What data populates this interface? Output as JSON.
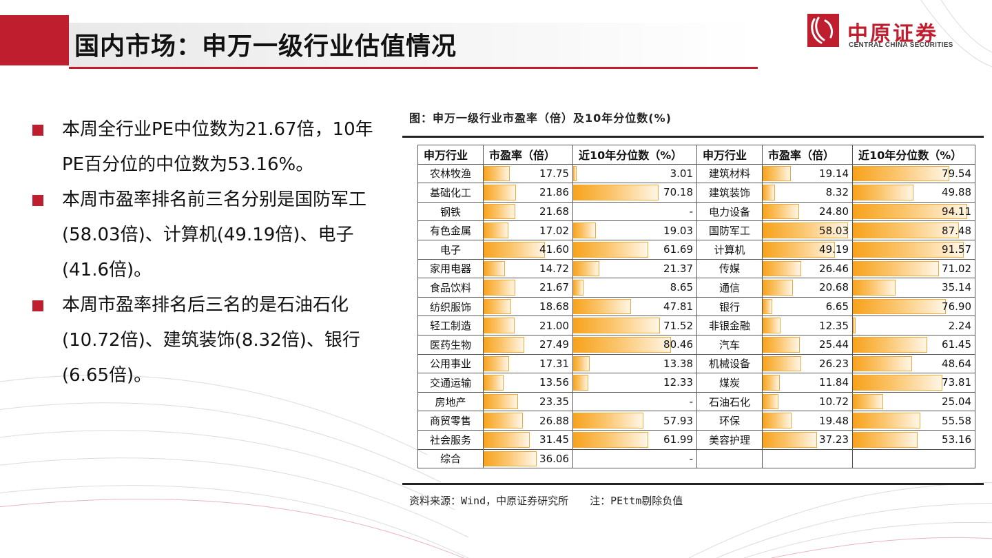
{
  "title": "国内市场：申万一级行业估值情况",
  "logo": {
    "cn": "中原证券",
    "en": "CENTRAL CHINA SECURITIES"
  },
  "bullets": [
    "本周全行业PE中位数为21.67倍，10年PE百分位的中位数为53.16%。",
    "本周市盈率排名前三名分别是国防军工(58.03倍)、计算机(49.19倍)、电子(41.6倍)。",
    "本周市盈率排名后三名的是石油石化(10.72倍)、建筑装饰(8.32倍)、银行(6.65倍)。"
  ],
  "figure_caption": "图：申万一级行业市盈率（倍）及10年分位数(%)",
  "source_note": "资料来源：Wind，中原证券研究所",
  "footnote": "注：PEttm剔除负值",
  "table": {
    "headers": [
      "申万行业",
      "市盈率（倍）",
      "近10年分位数（%）",
      "申万行业",
      "市盈率（倍）",
      "近10年分位数（%）"
    ],
    "left": [
      {
        "industry": "农林牧渔",
        "pe": "17.75",
        "pct": "3.01"
      },
      {
        "industry": "基础化工",
        "pe": "21.86",
        "pct": "70.18"
      },
      {
        "industry": "钢铁",
        "pe": "21.68",
        "pct": "-"
      },
      {
        "industry": "有色金属",
        "pe": "17.02",
        "pct": "19.03"
      },
      {
        "industry": "电子",
        "pe": "41.60",
        "pct": "61.69"
      },
      {
        "industry": "家用电器",
        "pe": "14.72",
        "pct": "21.37"
      },
      {
        "industry": "食品饮料",
        "pe": "21.67",
        "pct": "8.65"
      },
      {
        "industry": "纺织服饰",
        "pe": "18.68",
        "pct": "47.81"
      },
      {
        "industry": "轻工制造",
        "pe": "21.00",
        "pct": "71.52"
      },
      {
        "industry": "医药生物",
        "pe": "27.49",
        "pct": "80.46"
      },
      {
        "industry": "公用事业",
        "pe": "17.31",
        "pct": "13.38"
      },
      {
        "industry": "交通运输",
        "pe": "13.56",
        "pct": "12.33"
      },
      {
        "industry": "房地产",
        "pe": "23.35",
        "pct": "-"
      },
      {
        "industry": "商贸零售",
        "pe": "26.88",
        "pct": "57.93"
      },
      {
        "industry": "社会服务",
        "pe": "31.45",
        "pct": "61.99"
      },
      {
        "industry": "综合",
        "pe": "36.06",
        "pct": "-"
      }
    ],
    "right": [
      {
        "industry": "建筑材料",
        "pe": "19.14",
        "pct": "79.54"
      },
      {
        "industry": "建筑装饰",
        "pe": "8.32",
        "pct": "49.88"
      },
      {
        "industry": "电力设备",
        "pe": "24.80",
        "pct": "94.11"
      },
      {
        "industry": "国防军工",
        "pe": "58.03",
        "pct": "87.48"
      },
      {
        "industry": "计算机",
        "pe": "49.19",
        "pct": "91.57"
      },
      {
        "industry": "传媒",
        "pe": "26.46",
        "pct": "71.02"
      },
      {
        "industry": "通信",
        "pe": "20.68",
        "pct": "35.14"
      },
      {
        "industry": "银行",
        "pe": "6.65",
        "pct": "76.90"
      },
      {
        "industry": "非银金融",
        "pe": "12.35",
        "pct": "2.24"
      },
      {
        "industry": "汽车",
        "pe": "25.44",
        "pct": "61.45"
      },
      {
        "industry": "机械设备",
        "pe": "26.23",
        "pct": "48.64"
      },
      {
        "industry": "煤炭",
        "pe": "11.84",
        "pct": "73.81"
      },
      {
        "industry": "石油石化",
        "pe": "10.72",
        "pct": "25.04"
      },
      {
        "industry": "环保",
        "pe": "19.48",
        "pct": "55.58"
      },
      {
        "industry": "美容护理",
        "pe": "37.23",
        "pct": "53.16"
      }
    ]
  },
  "colors": {
    "brand_red": "#be1e2d",
    "bar_orange": "#f7a21b"
  }
}
